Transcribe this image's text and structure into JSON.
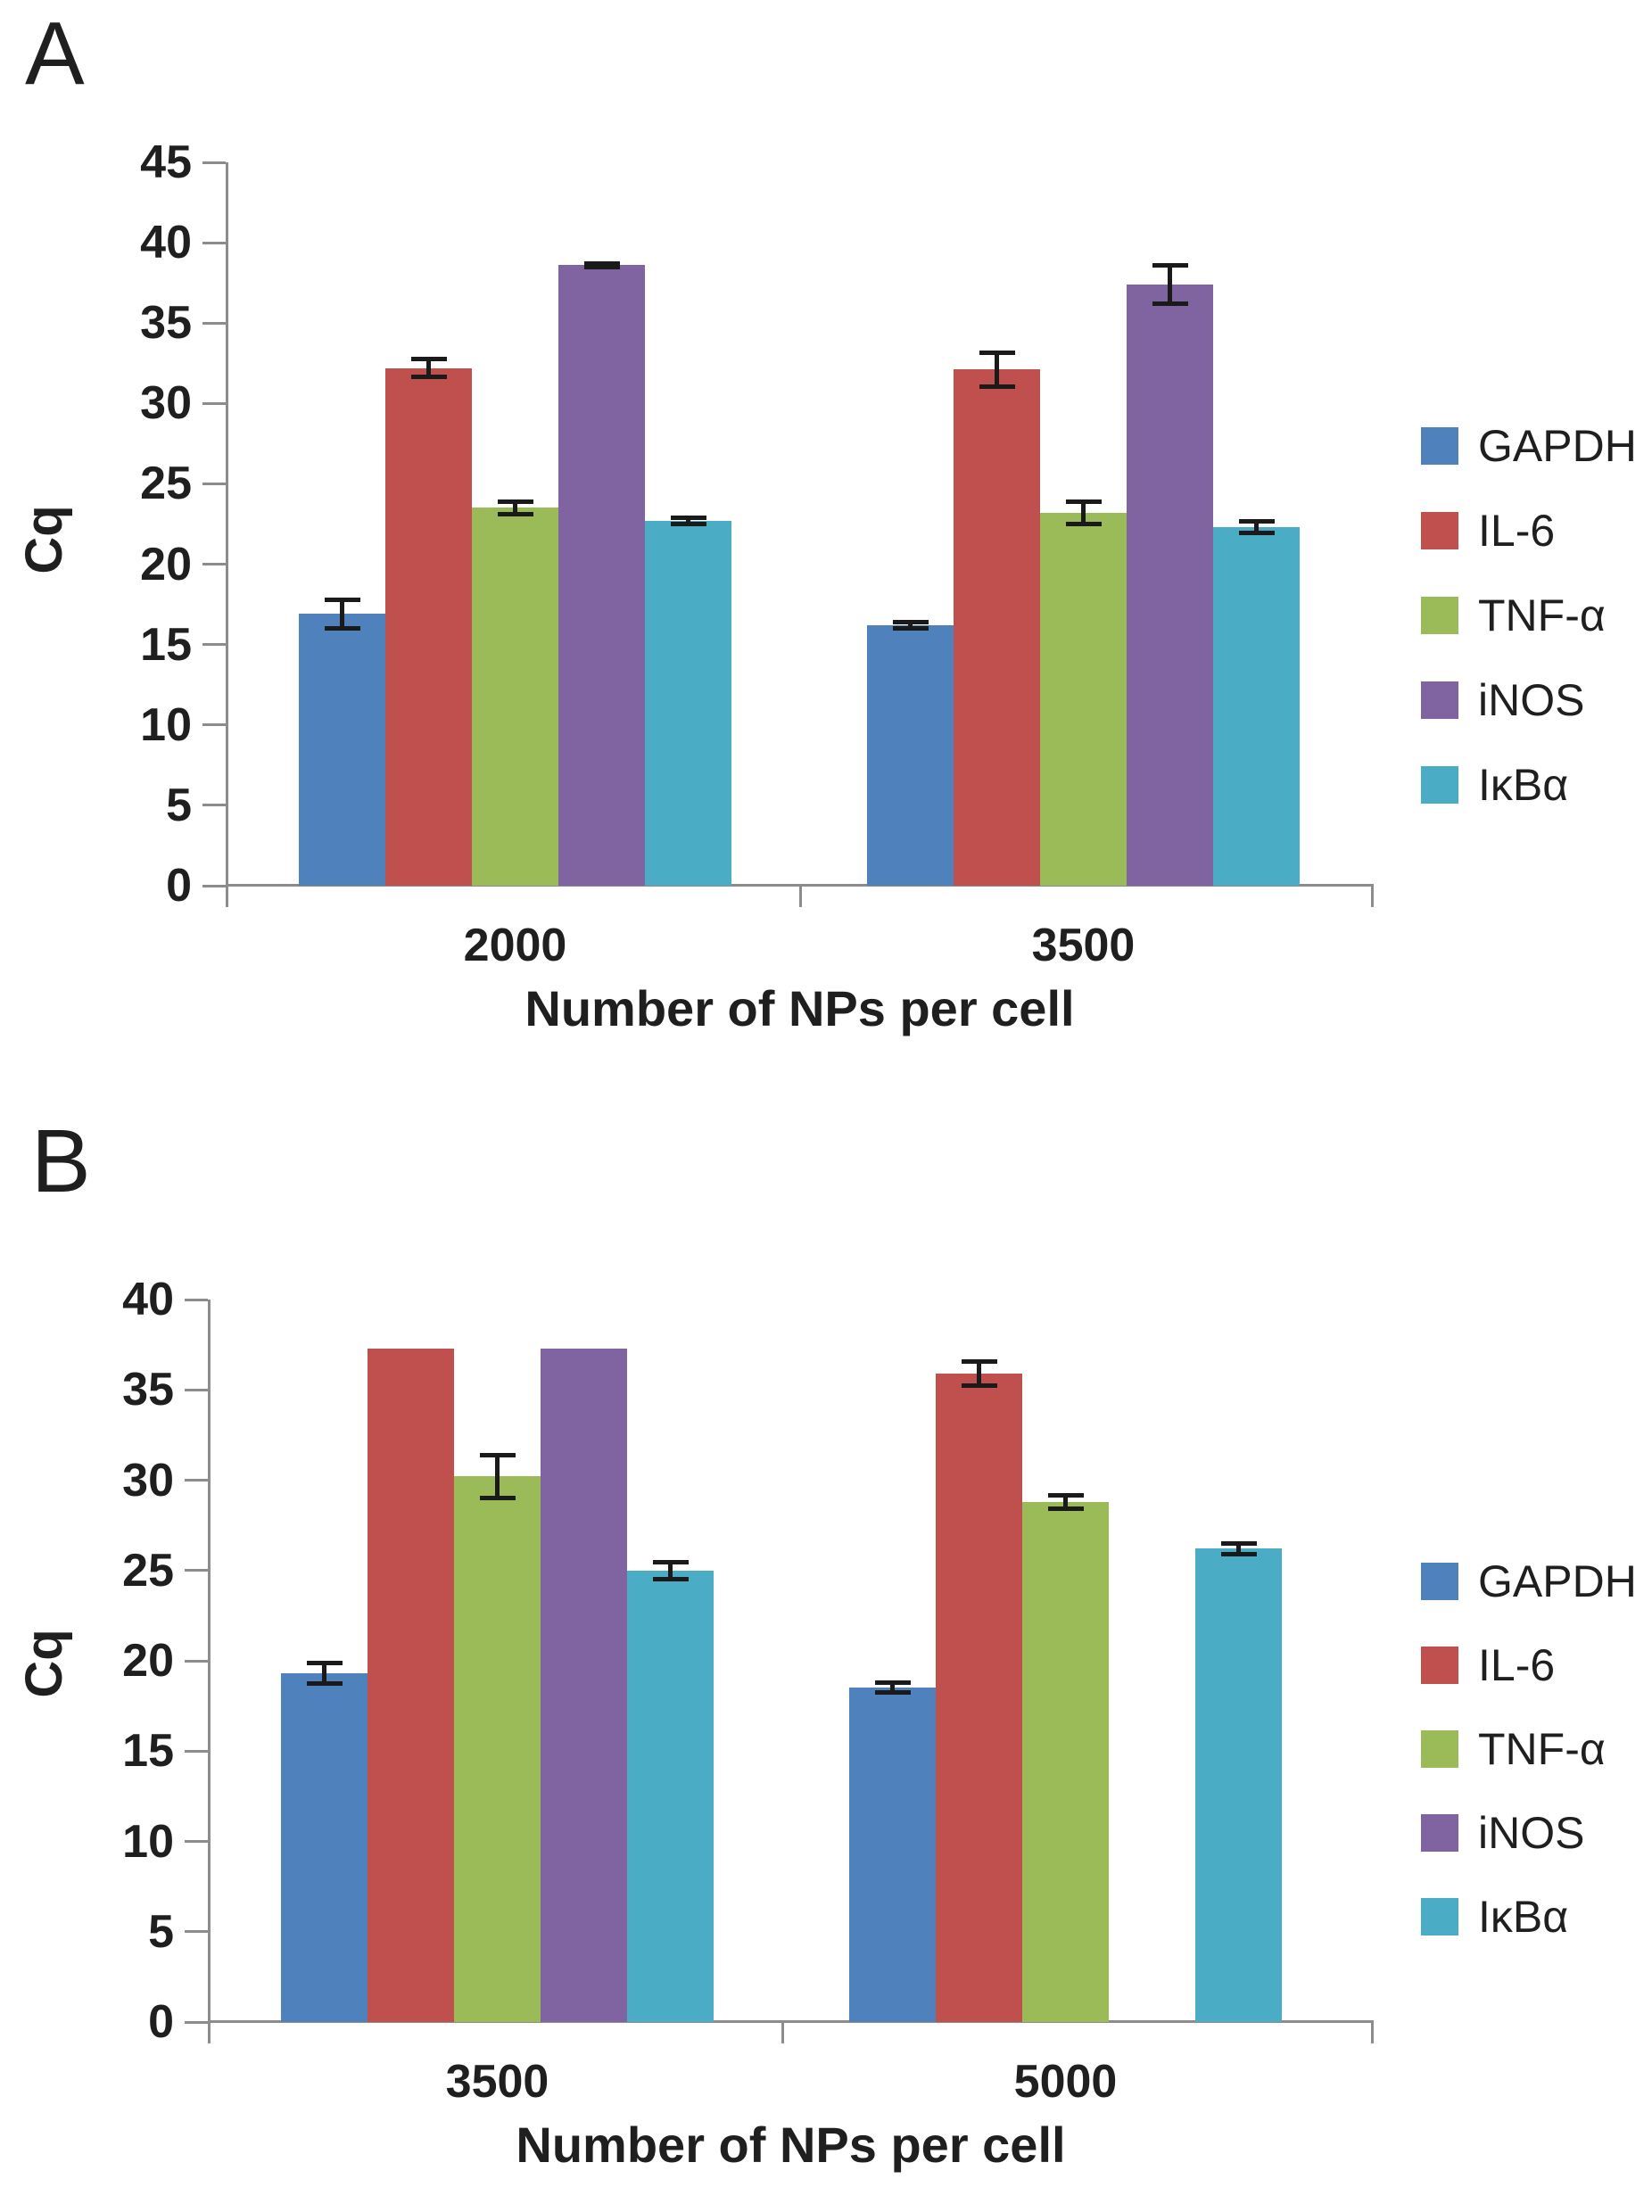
{
  "figure": {
    "background": "#ffffff",
    "axis_color": "#8c8c8c",
    "text_color": "#1f1f1f",
    "error_bar_color": "#1a1a1a"
  },
  "chart_data": [
    {
      "type": "bar",
      "panel": "A",
      "xlabel": "Number of NPs per cell",
      "ylabel": "Cq",
      "ylim": [
        0,
        45
      ],
      "ytick_step": 5,
      "grid": false,
      "legend_position": "right",
      "categories": [
        "2000",
        "3500"
      ],
      "series": [
        {
          "name": "GAPDH",
          "color": "#4F81BD",
          "values": [
            16.9,
            16.2
          ],
          "errors": [
            0.9,
            0.2
          ]
        },
        {
          "name": "IL-6",
          "color": "#C0504D",
          "values": [
            32.2,
            32.1
          ],
          "errors": [
            0.6,
            1.1
          ]
        },
        {
          "name": "TNF-α",
          "color": "#9BBB59",
          "values": [
            23.5,
            23.2
          ],
          "errors": [
            0.4,
            0.7
          ]
        },
        {
          "name": "iNOS",
          "color": "#8064A2",
          "values": [
            38.6,
            37.4
          ],
          "errors": [
            0.15,
            1.2
          ]
        },
        {
          "name": "IκBα",
          "color": "#4BACC6",
          "values": [
            22.7,
            22.3
          ],
          "errors": [
            0.2,
            0.4
          ]
        }
      ]
    },
    {
      "type": "bar",
      "panel": "B",
      "xlabel": "Number of NPs per cell",
      "ylabel": "Cq",
      "ylim": [
        0,
        40
      ],
      "ytick_step": 5,
      "grid": false,
      "legend_position": "right",
      "categories": [
        "3500",
        "5000"
      ],
      "series": [
        {
          "name": "GAPDH",
          "color": "#4F81BD",
          "values": [
            19.3,
            18.5
          ],
          "errors": [
            0.6,
            0.3
          ]
        },
        {
          "name": "IL-6",
          "color": "#C0504D",
          "values": [
            37.3,
            35.9
          ],
          "errors": [
            null,
            0.7
          ]
        },
        {
          "name": "TNF-α",
          "color": "#9BBB59",
          "values": [
            30.2,
            28.8
          ],
          "errors": [
            1.2,
            0.4
          ]
        },
        {
          "name": "iNOS",
          "color": "#8064A2",
          "values": [
            37.3,
            null
          ],
          "errors": [
            null,
            null
          ]
        },
        {
          "name": "IκBα",
          "color": "#4BACC6",
          "values": [
            25.0,
            26.2
          ],
          "errors": [
            0.5,
            0.3
          ]
        }
      ]
    }
  ]
}
